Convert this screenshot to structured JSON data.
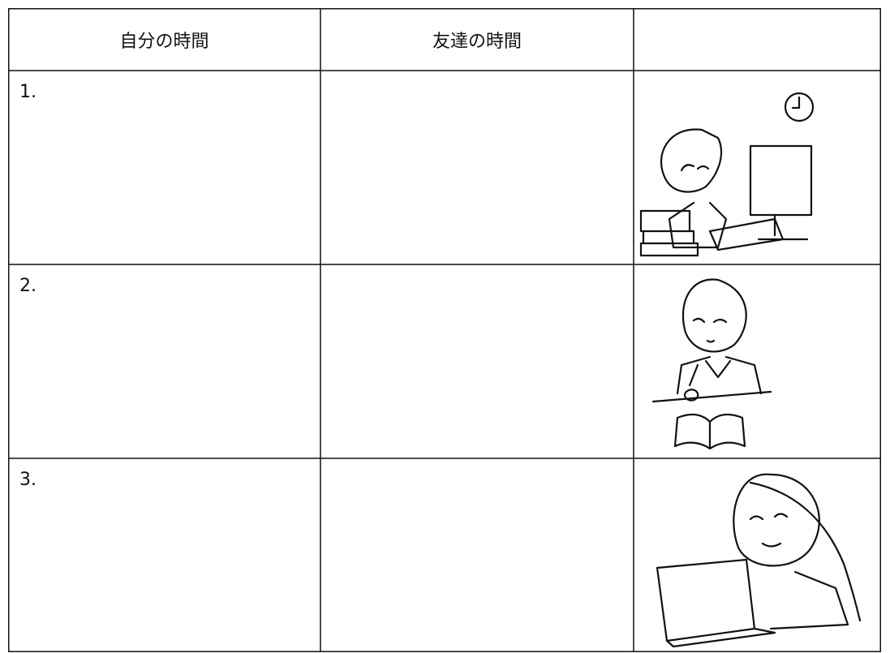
{
  "table": {
    "header": [
      "自分の時間",
      "友達の時間"
    ],
    "rows": [
      {
        "label": "1."
      },
      {
        "label": "2."
      },
      {
        "label": "3."
      }
    ]
  }
}
